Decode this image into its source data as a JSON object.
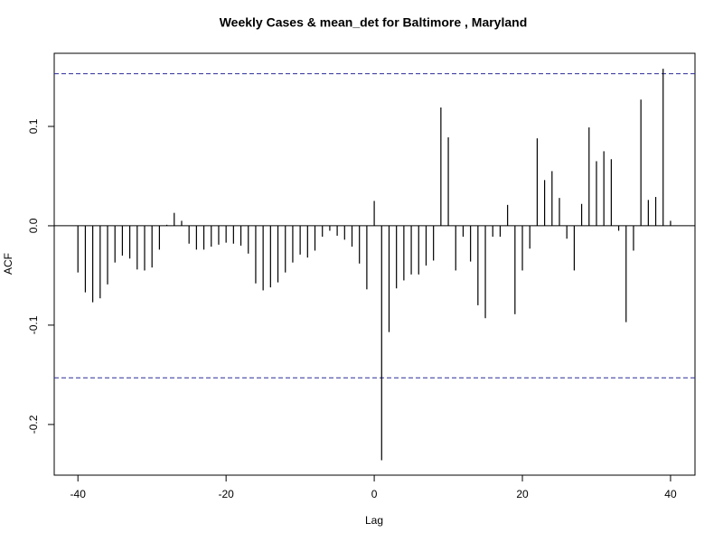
{
  "chart_data": {
    "type": "ccf",
    "title": "Weekly Cases & mean_det for Baltimore , Maryland",
    "xlabel": "Lag",
    "ylabel": "ACF",
    "x": [
      -40,
      -39,
      -38,
      -37,
      -36,
      -35,
      -34,
      -33,
      -32,
      -31,
      -30,
      -29,
      -28,
      -27,
      -26,
      -25,
      -24,
      -23,
      -22,
      -21,
      -20,
      -19,
      -18,
      -17,
      -16,
      -15,
      -14,
      -13,
      -12,
      -11,
      -10,
      -9,
      -8,
      -7,
      -6,
      -5,
      -4,
      -3,
      -2,
      -1,
      0,
      1,
      2,
      3,
      4,
      5,
      6,
      7,
      8,
      9,
      10,
      11,
      12,
      13,
      14,
      15,
      16,
      17,
      18,
      19,
      20,
      21,
      22,
      23,
      24,
      25,
      26,
      27,
      28,
      29,
      30,
      31,
      32,
      33,
      34,
      35,
      36,
      37,
      38,
      39,
      40
    ],
    "values": [
      -0.047,
      -0.067,
      -0.077,
      -0.073,
      -0.059,
      -0.037,
      -0.03,
      -0.033,
      -0.044,
      -0.045,
      -0.042,
      -0.024,
      0.001,
      0.013,
      0.005,
      -0.018,
      -0.024,
      -0.024,
      -0.021,
      -0.019,
      -0.017,
      -0.018,
      -0.02,
      -0.028,
      -0.058,
      -0.065,
      -0.062,
      -0.057,
      -0.047,
      -0.037,
      -0.029,
      -0.032,
      -0.025,
      -0.011,
      -0.005,
      -0.01,
      -0.014,
      -0.021,
      -0.038,
      -0.064,
      0.025,
      -0.236,
      -0.107,
      -0.063,
      -0.055,
      -0.049,
      -0.049,
      -0.04,
      -0.035,
      0.119,
      0.089,
      -0.045,
      -0.011,
      -0.036,
      -0.08,
      -0.093,
      -0.011,
      -0.011,
      0.021,
      -0.089,
      -0.045,
      -0.023,
      0.088,
      0.046,
      0.055,
      0.028,
      -0.013,
      -0.045,
      0.022,
      0.099,
      0.065,
      0.075,
      0.067,
      -0.005,
      -0.097,
      -0.025,
      0.127,
      0.026,
      0.029,
      0.158,
      0.005
    ],
    "color": "#000000",
    "confidence_bounds": [
      0.153,
      -0.153
    ],
    "bound_color": "#2b2b9a",
    "xlim": [
      -43.2,
      43.3
    ],
    "ylim": [
      -0.251,
      0.1736
    ],
    "xticks": [
      -40,
      -20,
      0,
      20,
      40
    ],
    "yticks": [
      -0.2,
      -0.1,
      {
        "value": 0,
        "label": "0.0"
      },
      0.1
    ]
  }
}
